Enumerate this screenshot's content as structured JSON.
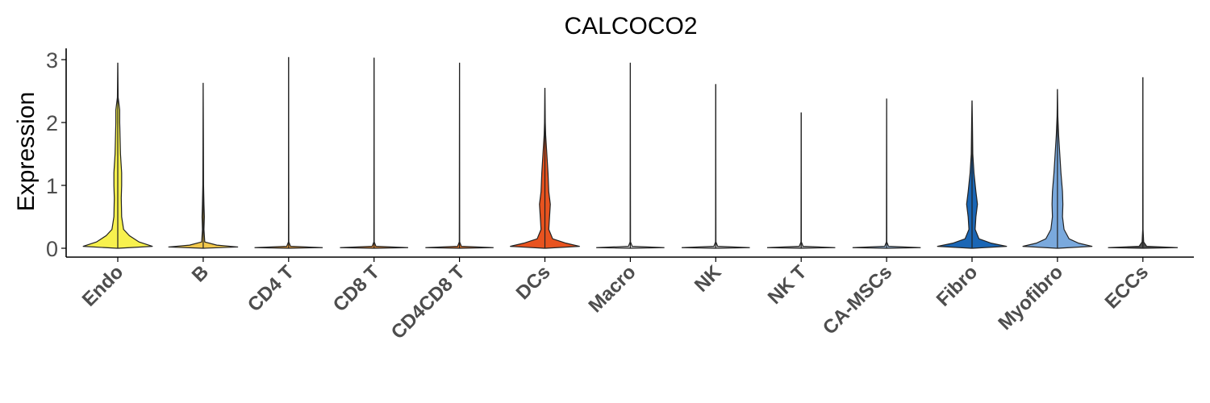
{
  "chart_data": {
    "type": "violin",
    "title": "CALCOCO2",
    "ylabel": "Expression",
    "xlabel": "",
    "ylim": [
      -0.15,
      3.2
    ],
    "yticks": [
      "0",
      "1",
      "2",
      "3"
    ],
    "grid": false,
    "legend": "none",
    "categories": [
      "Endo",
      "B",
      "CD4 T",
      "CD8 T",
      "CD4CD8 T",
      "DCs",
      "Macro",
      "NK",
      "NK T",
      "CA-MSCs",
      "Fibro",
      "Myofibro",
      "ECCs"
    ],
    "series": [
      {
        "name": "Endo",
        "color": "#f7f14e",
        "max": 2.95,
        "profile": [
          [
            0,
            0.02
          ],
          [
            0.03,
            0.9
          ],
          [
            0.1,
            0.55
          ],
          [
            0.2,
            0.3
          ],
          [
            0.3,
            0.15
          ],
          [
            0.5,
            0.1
          ],
          [
            0.8,
            0.09
          ],
          [
            1.0,
            0.1
          ],
          [
            1.2,
            0.1
          ],
          [
            1.5,
            0.07
          ],
          [
            2.0,
            0.05
          ],
          [
            2.2,
            0.05
          ],
          [
            2.4,
            0.01
          ],
          [
            2.95,
            0
          ]
        ]
      },
      {
        "name": "B",
        "color": "#f2c84b",
        "max": 2.63,
        "profile": [
          [
            0,
            0.01
          ],
          [
            0.02,
            0.9
          ],
          [
            0.05,
            0.35
          ],
          [
            0.1,
            0.04
          ],
          [
            0.3,
            0.02
          ],
          [
            0.5,
            0.03
          ],
          [
            0.7,
            0.02
          ],
          [
            1.0,
            0.01
          ],
          [
            2.63,
            0
          ]
        ]
      },
      {
        "name": "CD4 T",
        "color": "#e89f3c",
        "max": 3.04,
        "profile": [
          [
            0,
            0.005
          ],
          [
            0.01,
            0.88
          ],
          [
            0.03,
            0.05
          ],
          [
            0.1,
            0.005
          ],
          [
            3.04,
            0
          ]
        ]
      },
      {
        "name": "CD8 T",
        "color": "#e58a35",
        "max": 3.03,
        "profile": [
          [
            0,
            0.005
          ],
          [
            0.01,
            0.88
          ],
          [
            0.03,
            0.05
          ],
          [
            0.1,
            0.005
          ],
          [
            3.03,
            0
          ]
        ]
      },
      {
        "name": "CD4CD8 T",
        "color": "#e3782f",
        "max": 2.95,
        "profile": [
          [
            0,
            0.005
          ],
          [
            0.01,
            0.88
          ],
          [
            0.03,
            0.05
          ],
          [
            0.1,
            0.005
          ],
          [
            2.95,
            0
          ]
        ]
      },
      {
        "name": "DCs",
        "color": "#e8531f",
        "max": 2.55,
        "profile": [
          [
            0,
            0.02
          ],
          [
            0.03,
            0.9
          ],
          [
            0.08,
            0.55
          ],
          [
            0.15,
            0.2
          ],
          [
            0.3,
            0.1
          ],
          [
            0.5,
            0.12
          ],
          [
            0.7,
            0.14
          ],
          [
            0.9,
            0.1
          ],
          [
            1.2,
            0.08
          ],
          [
            1.5,
            0.05
          ],
          [
            1.8,
            0.02
          ],
          [
            2.0,
            0.01
          ],
          [
            2.55,
            0
          ]
        ]
      },
      {
        "name": "Macro",
        "color": "#d9d9d9",
        "max": 2.95,
        "profile": [
          [
            0,
            0.005
          ],
          [
            0.01,
            0.88
          ],
          [
            0.03,
            0.05
          ],
          [
            0.1,
            0.005
          ],
          [
            2.95,
            0
          ]
        ]
      },
      {
        "name": "NK",
        "color": "#c7c7c7",
        "max": 2.61,
        "profile": [
          [
            0,
            0.005
          ],
          [
            0.01,
            0.88
          ],
          [
            0.03,
            0.05
          ],
          [
            0.1,
            0.005
          ],
          [
            2.61,
            0
          ]
        ]
      },
      {
        "name": "NK T",
        "color": "#b5b5b5",
        "max": 2.16,
        "profile": [
          [
            0,
            0.005
          ],
          [
            0.01,
            0.88
          ],
          [
            0.03,
            0.05
          ],
          [
            0.1,
            0.005
          ],
          [
            2.16,
            0
          ]
        ]
      },
      {
        "name": "CA-MSCs",
        "color": "#9fbfe0",
        "max": 2.38,
        "profile": [
          [
            0,
            0.005
          ],
          [
            0.01,
            0.88
          ],
          [
            0.03,
            0.05
          ],
          [
            0.1,
            0.005
          ],
          [
            2.38,
            0
          ]
        ]
      },
      {
        "name": "Fibro",
        "color": "#1a66b5",
        "max": 2.35,
        "profile": [
          [
            0,
            0.02
          ],
          [
            0.03,
            0.9
          ],
          [
            0.08,
            0.5
          ],
          [
            0.15,
            0.18
          ],
          [
            0.3,
            0.08
          ],
          [
            0.5,
            0.1
          ],
          [
            0.7,
            0.14
          ],
          [
            0.9,
            0.1
          ],
          [
            1.2,
            0.05
          ],
          [
            1.5,
            0.02
          ],
          [
            2.0,
            0.01
          ],
          [
            2.35,
            0
          ]
        ]
      },
      {
        "name": "Myofibro",
        "color": "#7aa9dd",
        "max": 2.53,
        "profile": [
          [
            0,
            0.02
          ],
          [
            0.03,
            0.9
          ],
          [
            0.08,
            0.55
          ],
          [
            0.15,
            0.3
          ],
          [
            0.3,
            0.17
          ],
          [
            0.5,
            0.13
          ],
          [
            0.7,
            0.14
          ],
          [
            0.9,
            0.13
          ],
          [
            1.2,
            0.09
          ],
          [
            1.5,
            0.06
          ],
          [
            1.8,
            0.03
          ],
          [
            2.1,
            0.01
          ],
          [
            2.53,
            0
          ]
        ]
      },
      {
        "name": "ECCs",
        "color": "#4d4d4d",
        "max": 2.72,
        "profile": [
          [
            0,
            0.005
          ],
          [
            0.01,
            0.9
          ],
          [
            0.03,
            0.1
          ],
          [
            0.1,
            0.02
          ],
          [
            0.3,
            0.005
          ],
          [
            2.72,
            0
          ]
        ]
      }
    ]
  }
}
